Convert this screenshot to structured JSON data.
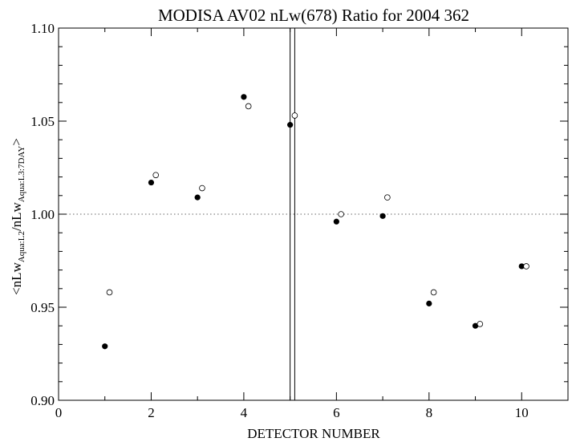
{
  "chart_data": {
    "type": "scatter",
    "title": "MODISA AV02 nLw(678) Ratio for 2004 362",
    "xlabel": "DETECTOR NUMBER",
    "ylabel": {
      "prefix": "<nLw",
      "sub1": "Aqua:L2",
      "mid": "/nLw",
      "sub2": "Aqua:L3:7DAY",
      "suffix": ">"
    },
    "xlim": [
      0,
      11
    ],
    "ylim": [
      0.9,
      1.1
    ],
    "xticks": [
      0,
      2,
      4,
      6,
      8,
      10
    ],
    "xtick_labels": [
      "0",
      "2",
      "4",
      "6",
      "8",
      "10"
    ],
    "x_minor_step": 1,
    "yticks": [
      0.9,
      0.95,
      1.0,
      1.05,
      1.1
    ],
    "ytick_labels": [
      "0.90",
      "0.95",
      "1.00",
      "1.05",
      "1.10"
    ],
    "y_minor_step": 0.01,
    "reference_line": {
      "y": 1.0,
      "style": "dotted"
    },
    "vertical_lines": [
      5.0,
      5.1
    ],
    "series": [
      {
        "marker": "filled-circle",
        "x": [
          1,
          2,
          3,
          4,
          5,
          6,
          7,
          8,
          9,
          10
        ],
        "y": [
          0.929,
          1.017,
          1.009,
          1.063,
          1.048,
          0.996,
          0.999,
          0.952,
          0.94,
          0.972
        ]
      },
      {
        "marker": "open-circle",
        "x": [
          1.1,
          2.1,
          3.1,
          4.1,
          5.1,
          6.1,
          7.1,
          8.1,
          9.1,
          10.1
        ],
        "y": [
          0.958,
          1.021,
          1.014,
          1.058,
          1.053,
          1.0,
          1.009,
          0.958,
          0.941,
          0.972
        ]
      }
    ]
  }
}
